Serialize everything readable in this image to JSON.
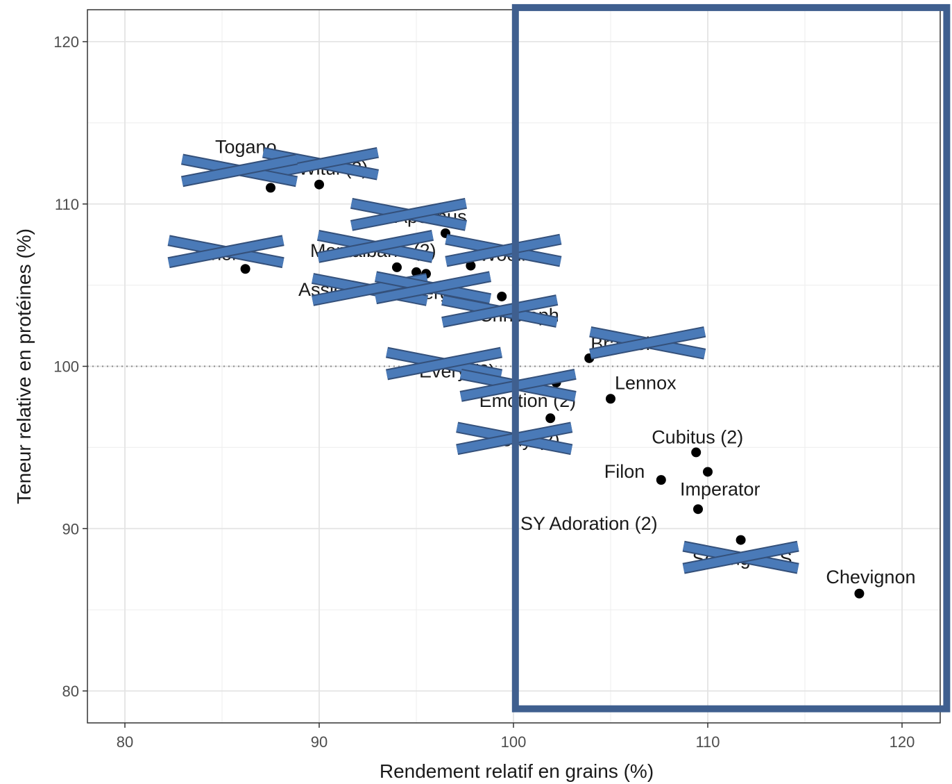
{
  "chart_data": {
    "type": "scatter",
    "xlabel": "Rendement relatif en grains (%)",
    "ylabel": "Teneur relative en protéines (%)",
    "xlim": [
      78,
      122
    ],
    "ylim": [
      78,
      122
    ],
    "x_ticks": [
      80,
      90,
      100,
      110,
      120
    ],
    "y_ticks": [
      80,
      90,
      100,
      110,
      120
    ],
    "reference_line_y": 100,
    "grid": true,
    "points": [
      {
        "label": "Witul (2)",
        "x": 90.0,
        "y": 111.2,
        "crossed": true
      },
      {
        "label": "Togano",
        "x": 87.5,
        "y": 111.0,
        "crossed": true
      },
      {
        "label": "Tenor",
        "x": 86.2,
        "y": 106.0,
        "crossed": true
      },
      {
        "label": "Apolinus",
        "x": 96.5,
        "y": 108.2,
        "crossed": true
      },
      {
        "label": "Montalbano (2)",
        "x": 94.0,
        "y": 106.1,
        "crossed": true
      },
      {
        "label": "Wooln",
        "x": 97.8,
        "y": 106.2,
        "crossed": true
      },
      {
        "label": "Assio",
        "x": 95.0,
        "y": 105.8,
        "crossed": true
      },
      {
        "label": "Berg",
        "x": 95.5,
        "y": 105.7,
        "crossed": true
      },
      {
        "label": "Christoph",
        "x": 99.4,
        "y": 104.3,
        "crossed": true
      },
      {
        "label": "Bramel",
        "x": 103.9,
        "y": 100.5,
        "crossed": true
      },
      {
        "label": "Every (2)",
        "x": 99.0,
        "y": 99.1,
        "crossed": true
      },
      {
        "label": "Emotion (2)",
        "x": 102.2,
        "y": 99.0,
        "crossed": true
      },
      {
        "label": "Lennox",
        "x": 105.0,
        "y": 98.0,
        "crossed": false
      },
      {
        "label": "Ceny (2)",
        "x": 101.9,
        "y": 96.8,
        "crossed": true
      },
      {
        "label": "Cubitus (2)",
        "x": 109.4,
        "y": 94.7,
        "crossed": false
      },
      {
        "label": "Filon",
        "x": 107.6,
        "y": 93.0,
        "crossed": false
      },
      {
        "label": "Imperator",
        "x": 110.0,
        "y": 93.5,
        "crossed": false
      },
      {
        "label": "SY Adoration (2)",
        "x": 109.5,
        "y": 91.2,
        "crossed": false
      },
      {
        "label": "Solange CS",
        "x": 111.7,
        "y": 89.3,
        "crossed": true
      },
      {
        "label": "Chevignon",
        "x": 117.8,
        "y": 86.0,
        "crossed": false
      }
    ],
    "highlight_box": {
      "x_from": 100.1,
      "x_to": 122.3,
      "y_from": 78.9,
      "y_to": 122.1,
      "color": "#3f5f8f"
    }
  }
}
